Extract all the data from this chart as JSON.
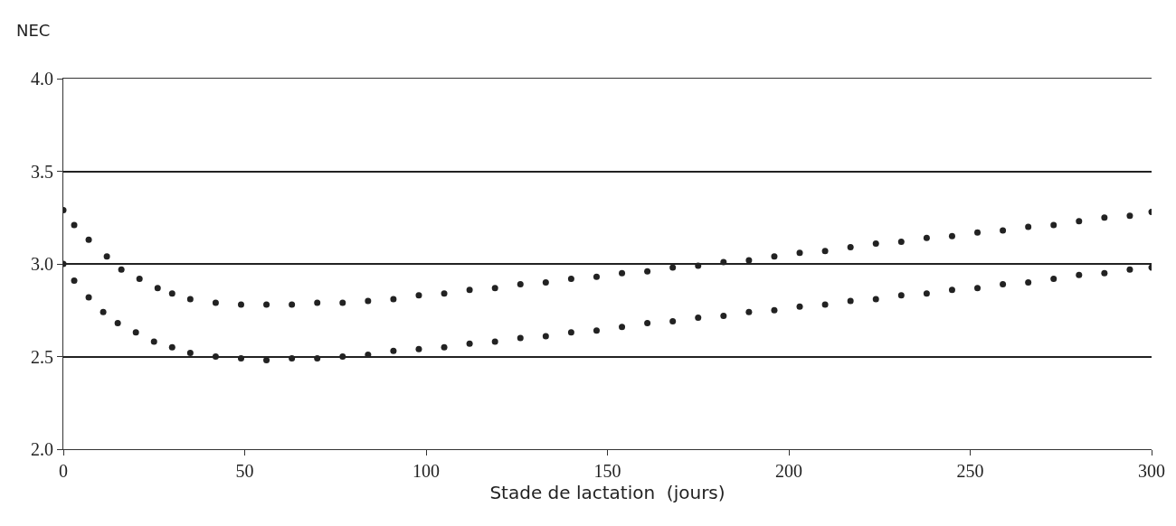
{
  "chart_data": {
    "type": "scatter",
    "xlabel": "Stade de lactation  (jours)",
    "ylabel": "NEC",
    "xlim": [
      0,
      300
    ],
    "xticks": [
      0,
      50,
      100,
      150,
      200,
      250,
      300
    ],
    "ylim": [
      2.0,
      4.0
    ],
    "yticks": [
      {
        "value": 2.0,
        "label": "2.0"
      },
      {
        "value": 2.5,
        "label": "2.5"
      },
      {
        "value": 3.0,
        "label": "3.0"
      },
      {
        "value": 3.5,
        "label": "3.5"
      },
      {
        "value": 4.0,
        "label": "4.0"
      }
    ],
    "grid": "y",
    "marker": "circle",
    "series": [
      {
        "color": "#222222",
        "x": [
          0,
          3,
          7,
          12,
          16,
          21,
          26,
          30,
          35,
          42,
          49,
          56,
          63,
          70,
          77,
          84,
          91,
          98,
          105,
          112,
          119,
          126,
          133,
          140,
          147,
          154,
          161,
          168,
          175,
          182,
          189,
          196,
          203,
          210,
          217,
          224,
          231,
          238,
          245,
          252,
          259,
          266,
          273,
          280,
          287,
          294,
          300
        ],
        "values": [
          3.29,
          3.21,
          3.13,
          3.04,
          2.97,
          2.92,
          2.87,
          2.84,
          2.81,
          2.79,
          2.78,
          2.78,
          2.78,
          2.79,
          2.79,
          2.8,
          2.81,
          2.83,
          2.84,
          2.86,
          2.87,
          2.89,
          2.9,
          2.92,
          2.93,
          2.95,
          2.96,
          2.98,
          2.99,
          3.01,
          3.02,
          3.04,
          3.06,
          3.07,
          3.09,
          3.11,
          3.12,
          3.14,
          3.15,
          3.17,
          3.18,
          3.2,
          3.21,
          3.23,
          3.25,
          3.26,
          3.28
        ]
      },
      {
        "color": "#222222",
        "x": [
          0,
          3,
          7,
          11,
          15,
          20,
          25,
          30,
          35,
          42,
          49,
          56,
          63,
          70,
          77,
          84,
          91,
          98,
          105,
          112,
          119,
          126,
          133,
          140,
          147,
          154,
          161,
          168,
          175,
          182,
          189,
          196,
          203,
          210,
          217,
          224,
          231,
          238,
          245,
          252,
          259,
          266,
          273,
          280,
          287,
          294,
          300
        ],
        "values": [
          3.0,
          2.91,
          2.82,
          2.74,
          2.68,
          2.63,
          2.58,
          2.55,
          2.52,
          2.5,
          2.49,
          2.48,
          2.49,
          2.49,
          2.5,
          2.51,
          2.53,
          2.54,
          2.55,
          2.57,
          2.58,
          2.6,
          2.61,
          2.63,
          2.64,
          2.66,
          2.68,
          2.69,
          2.71,
          2.72,
          2.74,
          2.75,
          2.77,
          2.78,
          2.8,
          2.81,
          2.83,
          2.84,
          2.86,
          2.87,
          2.89,
          2.9,
          2.92,
          2.94,
          2.95,
          2.97,
          2.98
        ]
      }
    ]
  }
}
